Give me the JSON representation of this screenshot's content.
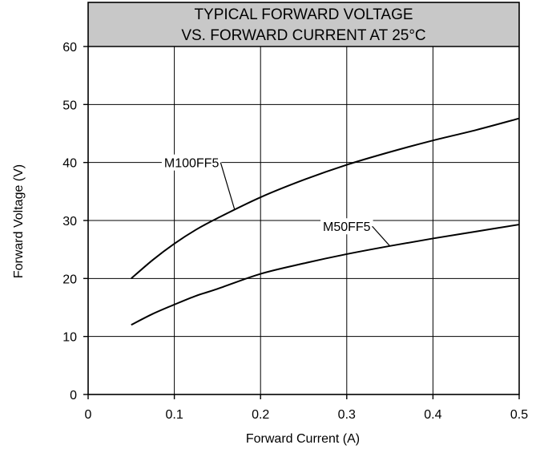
{
  "chart_data": {
    "type": "line",
    "title_lines": [
      "TYPICAL FORWARD VOLTAGE",
      "VS. FORWARD CURRENT AT 25°C"
    ],
    "xlabel": "Forward Current (A)",
    "ylabel": "Forward Voltage (V)",
    "xlim": [
      0,
      0.5
    ],
    "ylim": [
      0,
      60
    ],
    "title_band_top": 65,
    "x_ticks": [
      0,
      0.1,
      0.2,
      0.3,
      0.4,
      0.5
    ],
    "x_tick_labels": [
      "0",
      "0.1",
      "0.2",
      "0.3",
      "0.4",
      "0.5"
    ],
    "y_ticks": [
      0,
      10,
      20,
      30,
      40,
      50,
      60
    ],
    "y_tick_labels": [
      "0",
      "10",
      "20",
      "30",
      "40",
      "50",
      "60"
    ],
    "grid": true,
    "series": [
      {
        "name": "M100FF5",
        "x": [
          0.05,
          0.075,
          0.1,
          0.125,
          0.15,
          0.2,
          0.25,
          0.3,
          0.35,
          0.4,
          0.45,
          0.5
        ],
        "y": [
          20,
          23.2,
          26,
          28.4,
          30.4,
          34,
          37,
          39.6,
          41.8,
          43.8,
          45.6,
          47.6
        ],
        "label_at": [
          0.12,
          40
        ]
      },
      {
        "name": "M50FF5",
        "x": [
          0.05,
          0.075,
          0.1,
          0.125,
          0.15,
          0.2,
          0.25,
          0.3,
          0.35,
          0.4,
          0.45,
          0.5
        ],
        "y": [
          12,
          13.9,
          15.5,
          17,
          18.2,
          20.8,
          22.6,
          24.2,
          25.6,
          26.9,
          28.1,
          29.3
        ],
        "label_at": [
          0.3,
          29
        ]
      }
    ]
  }
}
